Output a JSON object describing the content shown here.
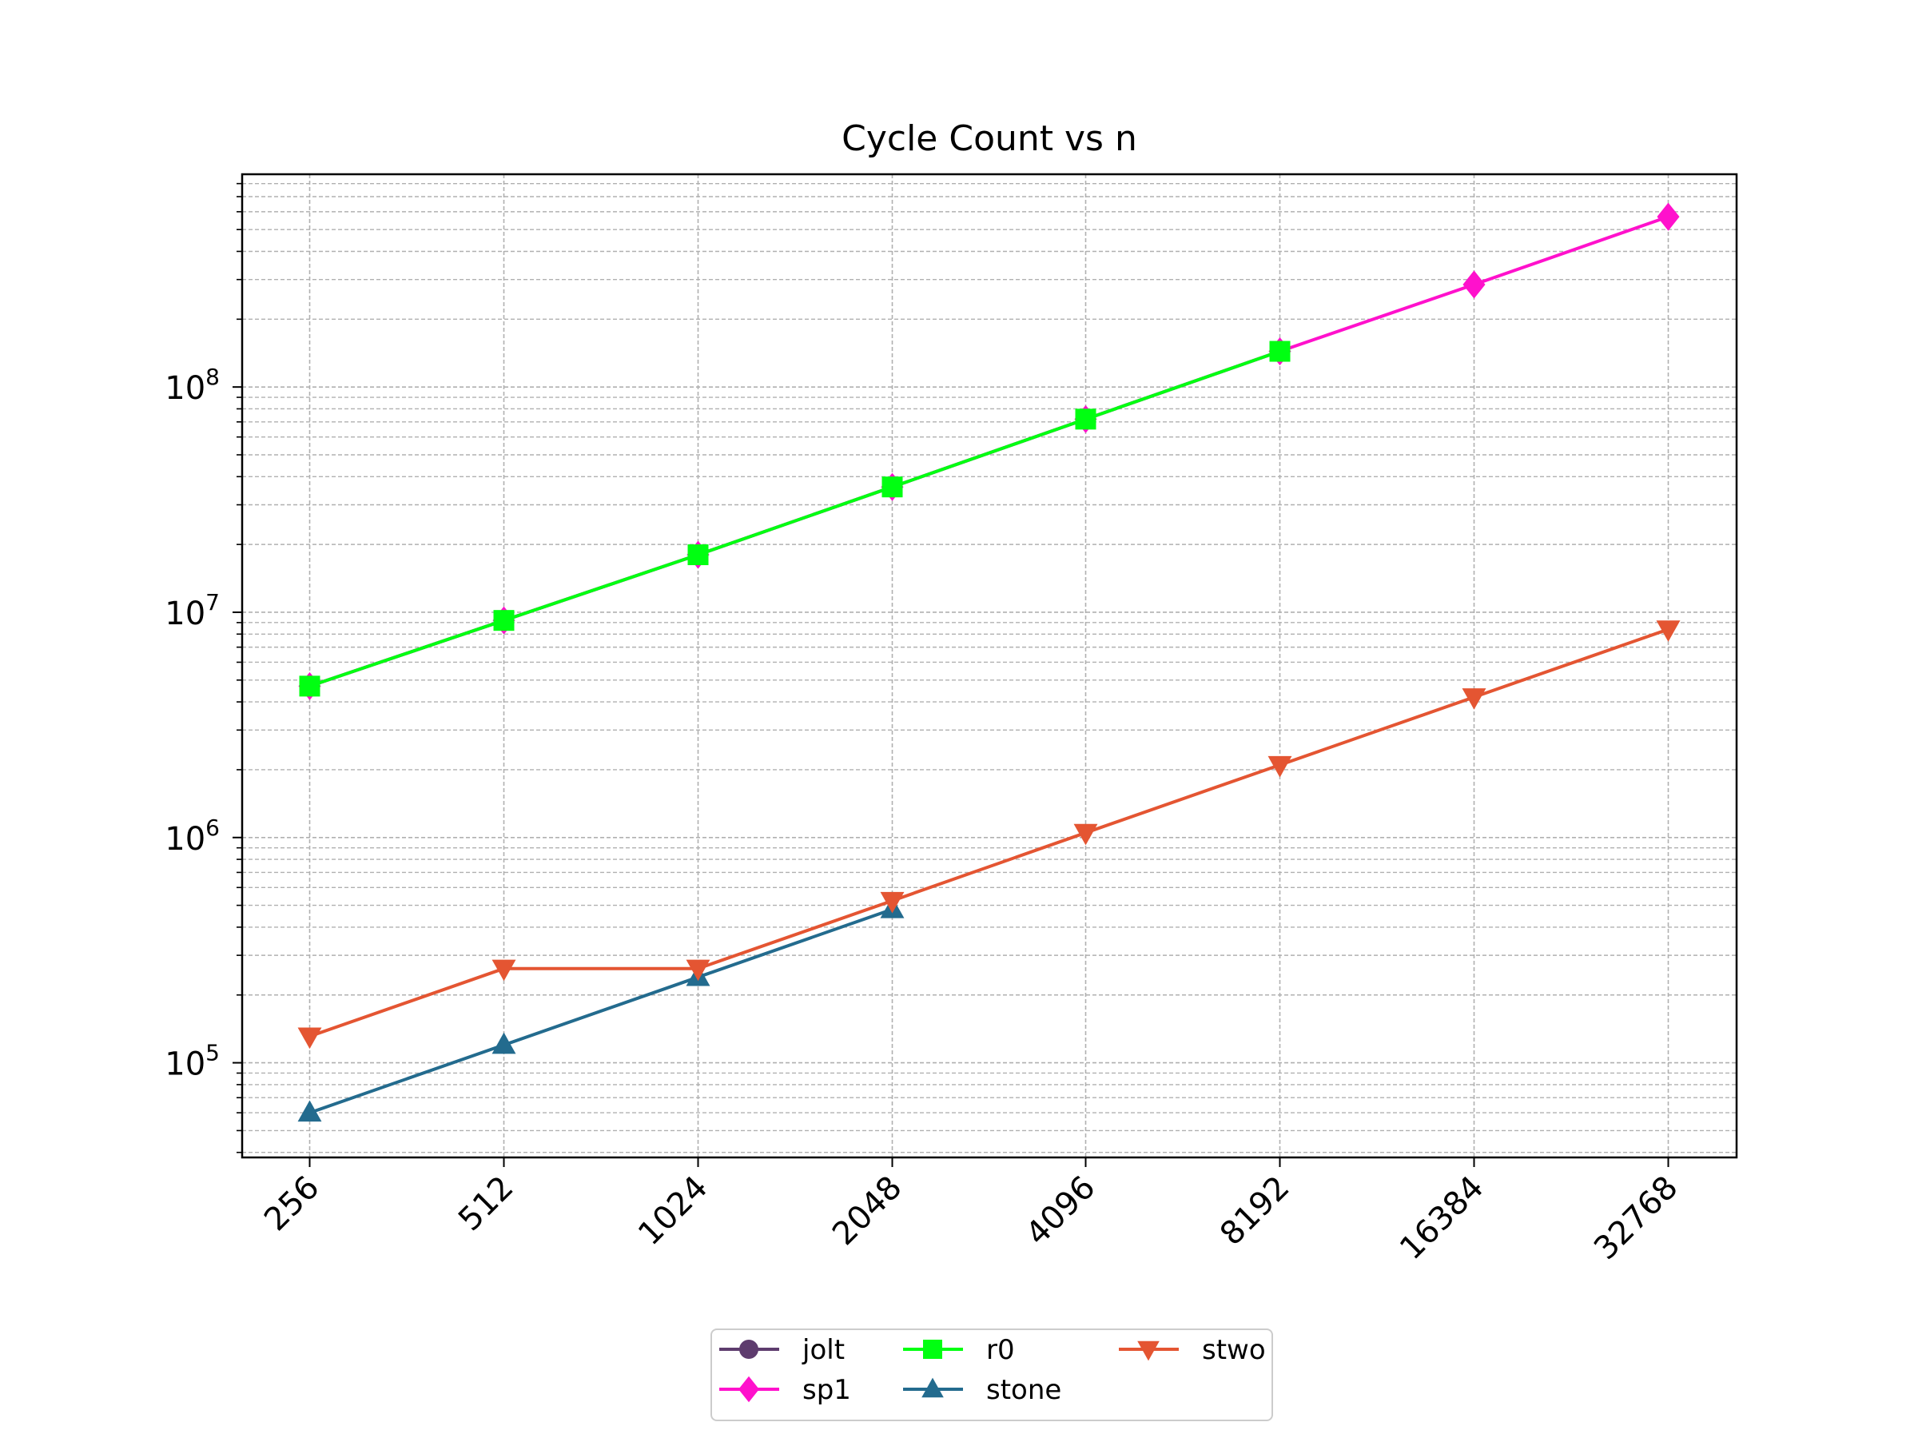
{
  "chart_data": {
    "type": "line",
    "title": "Cycle Count vs n",
    "xlabel": "",
    "ylabel": "",
    "x": [
      256,
      512,
      1024,
      2048,
      4096,
      8192,
      16384,
      32768
    ],
    "x_tick_labels": [
      "256",
      "512",
      "1024",
      "2048",
      "4096",
      "8192",
      "16384",
      "32768"
    ],
    "x_scale": "categorical",
    "y_scale": "log",
    "ylim": [
      38000,
      880000000
    ],
    "y_tick_labels": [
      {
        "base": "10",
        "exp": "5",
        "value": 100000
      },
      {
        "base": "10",
        "exp": "6",
        "value": 1000000
      },
      {
        "base": "10",
        "exp": "7",
        "value": 10000000
      },
      {
        "base": "10",
        "exp": "8",
        "value": 100000000
      }
    ],
    "grid": true,
    "legend_position": "bottom-center",
    "series": [
      {
        "name": "jolt",
        "color": "#5e3c6e",
        "marker": "circle",
        "values": [
          4700000,
          9200000,
          18000000,
          36000000,
          72000000,
          144000000,
          null,
          null
        ]
      },
      {
        "name": "sp1",
        "color": "#ff11cc",
        "marker": "diamond",
        "values": [
          4700000,
          9200000,
          18000000,
          36000000,
          72000000,
          144000000,
          285000000,
          570000000
        ]
      },
      {
        "name": "r0",
        "color": "#00ff11",
        "marker": "square",
        "values": [
          4700000,
          9200000,
          18000000,
          36000000,
          72000000,
          144000000,
          null,
          null
        ]
      },
      {
        "name": "stone",
        "color": "#236b8e",
        "marker": "triangle-up",
        "values": [
          60000,
          120000,
          240000,
          480000,
          null,
          null,
          null,
          null
        ]
      },
      {
        "name": "stwo",
        "color": "#e45532",
        "marker": "triangle-down",
        "values": [
          131000,
          262000,
          262000,
          524000,
          1050000,
          2100000,
          4200000,
          8400000
        ]
      }
    ]
  }
}
